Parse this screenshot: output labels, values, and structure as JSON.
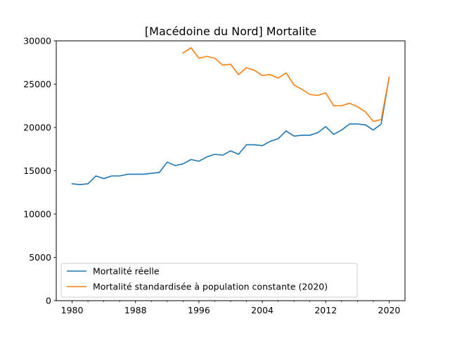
{
  "chart_data": {
    "type": "line",
    "title": "[Macédoine du Nord] Mortalite",
    "xlabel": "",
    "ylabel": "",
    "xlim": [
      1978,
      2022
    ],
    "ylim": [
      0,
      30000
    ],
    "xticks": [
      1980,
      1988,
      1996,
      2004,
      2012,
      2020
    ],
    "xtick_labels": [
      "1980",
      "1988",
      "1996",
      "2004",
      "2012",
      "2020"
    ],
    "yticks": [
      0,
      5000,
      10000,
      15000,
      20000,
      25000,
      30000
    ],
    "ytick_labels": [
      "0",
      "5000",
      "10000",
      "15000",
      "20000",
      "25000",
      "30000"
    ],
    "grid": false,
    "legend_position": "lower-left",
    "series": [
      {
        "name": "Mortalité réelle",
        "color": "#1f77b4",
        "x": [
          1980,
          1981,
          1982,
          1983,
          1984,
          1985,
          1986,
          1987,
          1988,
          1989,
          1990,
          1991,
          1992,
          1993,
          1994,
          1995,
          1996,
          1997,
          1998,
          1999,
          2000,
          2001,
          2002,
          2003,
          2004,
          2005,
          2006,
          2007,
          2008,
          2009,
          2010,
          2011,
          2012,
          2013,
          2014,
          2015,
          2016,
          2017,
          2018,
          2019,
          2020
        ],
        "values": [
          13500,
          13400,
          13500,
          14400,
          14100,
          14400,
          14400,
          14600,
          14600,
          14600,
          14700,
          14800,
          16000,
          15600,
          15800,
          16300,
          16100,
          16600,
          16900,
          16800,
          17300,
          16900,
          18000,
          18000,
          17900,
          18400,
          18700,
          19600,
          19000,
          19100,
          19100,
          19400,
          20100,
          19200,
          19700,
          20400,
          20400,
          20300,
          19700,
          20400,
          25800
        ]
      },
      {
        "name": "Mortalité standardisée à population constante (2020)",
        "color": "#ff7f0e",
        "x": [
          1994,
          1995,
          1996,
          1997,
          1998,
          1999,
          2000,
          2001,
          2002,
          2003,
          2004,
          2005,
          2006,
          2007,
          2008,
          2009,
          2010,
          2011,
          2012,
          2013,
          2014,
          2015,
          2016,
          2017,
          2018,
          2019,
          2020
        ],
        "values": [
          28600,
          29200,
          28000,
          28200,
          28000,
          27200,
          27300,
          26100,
          26900,
          26600,
          26000,
          26100,
          25700,
          26300,
          24900,
          24400,
          23800,
          23700,
          24000,
          22500,
          22500,
          22800,
          22400,
          21800,
          20700,
          20900,
          25800
        ]
      }
    ]
  }
}
